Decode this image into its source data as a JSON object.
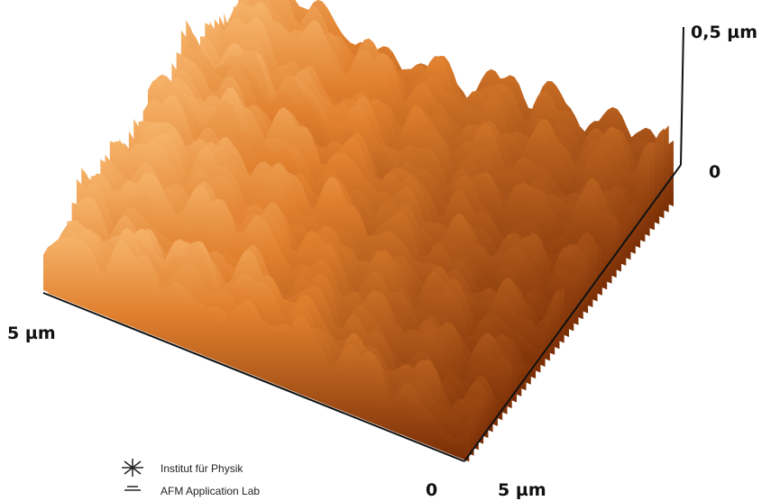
{
  "z_axis": {
    "top_label": "0,5 µm",
    "bottom_label": "0"
  },
  "left_axis": {
    "label": "5 µm"
  },
  "front_axis": {
    "origin_label": "0",
    "end_label": "5 µm"
  },
  "logo": {
    "line1": "Institut für Physik",
    "line2": "AFM Application Lab"
  }
}
